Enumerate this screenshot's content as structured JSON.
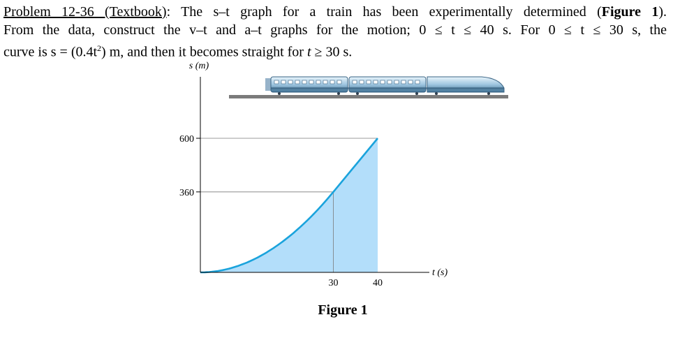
{
  "problem": {
    "lead": "Problem 12-36 (Textbook)",
    "line1_a": ": The s–t graph for a train has been experimentally determined (",
    "fig_ref": "Figure 1",
    "line1_b": ").",
    "line2": "From the data, construct the v–t and a–t graphs for the motion; 0 ≤ t ≤ 40 s. For 0 ≤ t ≤ 30 s, the",
    "line3_a": "curve is s = (0.4t",
    "line3_sup": "2",
    "line3_b": ") m, and then it becomes straight for ",
    "line3_t": "t",
    "line3_c": " ≥ 30 s."
  },
  "chart_data": {
    "type": "area",
    "ylabel": "s (m)",
    "xlabel": "t (s)",
    "x_ticks": [
      30,
      40
    ],
    "y_ticks": [
      360,
      600
    ],
    "xlim": [
      0,
      40
    ],
    "ylim": [
      0,
      600
    ],
    "series": [
      {
        "segment": "parabola",
        "equation": "s = 0.4t^2",
        "t_range": [
          0,
          30
        ]
      },
      {
        "segment": "straight",
        "points": [
          [
            30,
            360
          ],
          [
            40,
            600
          ]
        ]
      }
    ],
    "fill_color": "#b3defa",
    "line_color": "#1aa3dc",
    "caption": "Figure 1"
  }
}
